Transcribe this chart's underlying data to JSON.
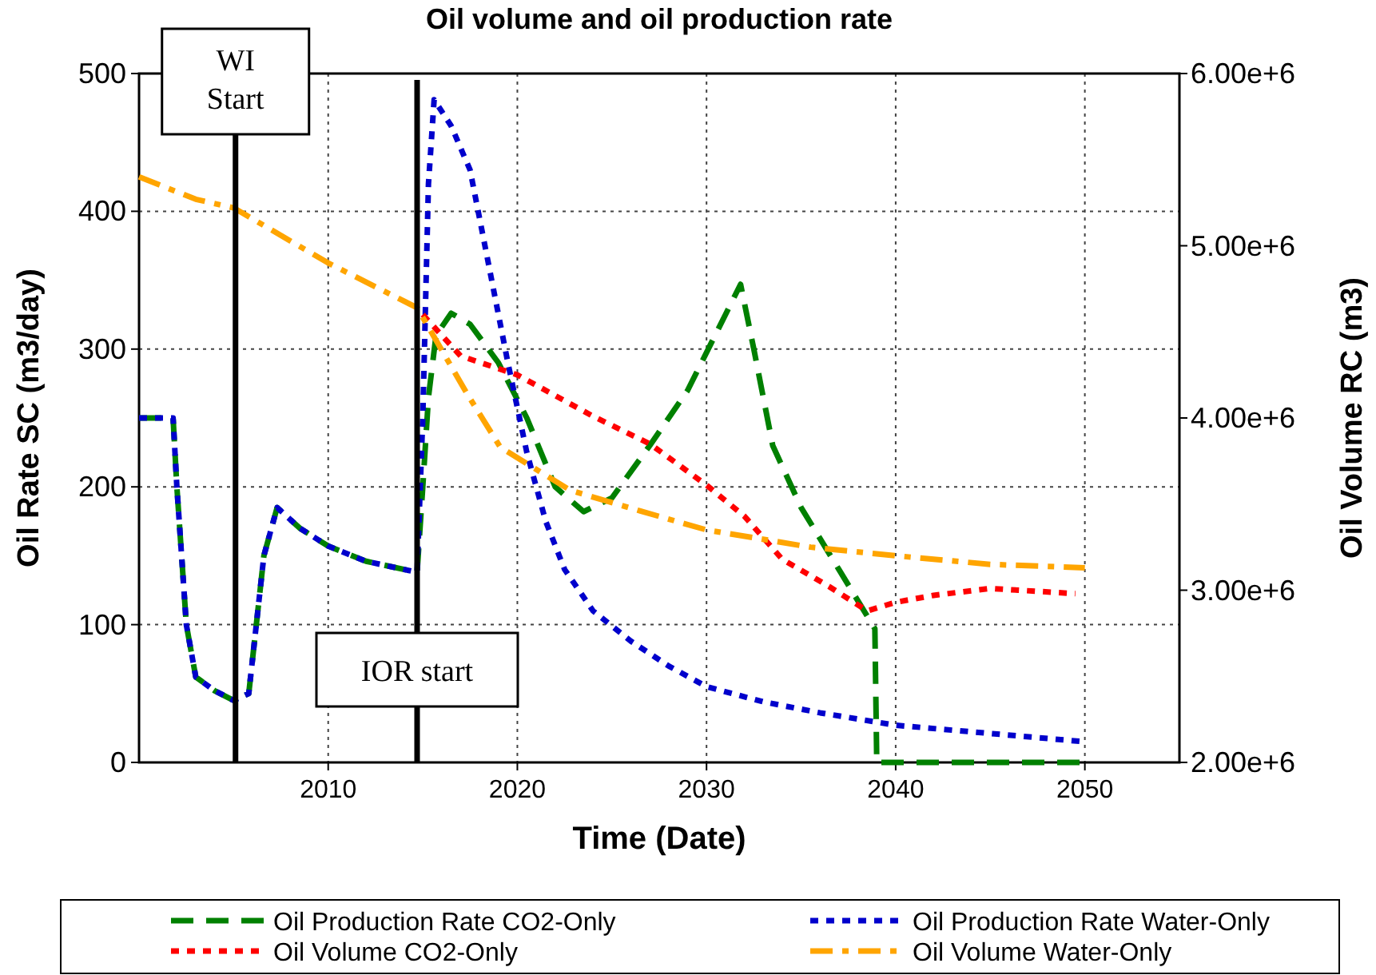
{
  "chart_data": {
    "type": "line",
    "title": "Oil volume and oil production rate",
    "xlabel": "Time (Date)",
    "ylabel": "Oil Rate SC (m3/day)",
    "y2label": "Oil Volume RC (m3)",
    "xlim": [
      2000,
      2055
    ],
    "xticks": [
      2010,
      2020,
      2030,
      2040,
      2050
    ],
    "ylim": [
      0,
      500
    ],
    "yticks": [
      0,
      100,
      200,
      300,
      400,
      500
    ],
    "y2lim": [
      2000000,
      6000000
    ],
    "y2ticks": [
      {
        "value": 2000000,
        "label": "2.00e+6"
      },
      {
        "value": 3000000,
        "label": "3.00e+6"
      },
      {
        "value": 4000000,
        "label": "4.00e+6"
      },
      {
        "value": 5000000,
        "label": "5.00e+6"
      },
      {
        "value": 6000000,
        "label": "6.00e+6"
      }
    ],
    "grid": true,
    "legend": "bottom",
    "marker": "none",
    "ref_lines": [
      {
        "axis": "x",
        "value": 2005.1,
        "label": "WI Start",
        "color": "#000000",
        "line_style": "solid"
      },
      {
        "axis": "x",
        "value": 2014.7,
        "label": "IOR start",
        "color": "#000000",
        "line_style": "solid"
      }
    ],
    "series": [
      {
        "name": "Oil Production Rate CO2-Only",
        "color": "#008000",
        "line_style": "dashed",
        "x": [
          2000,
          2001.8,
          2002,
          2002.5,
          2003,
          2004,
          2005,
          2005.8,
          2006.2,
          2006.6,
          2007.3,
          2008.5,
          2010,
          2012,
          2014.7,
          2015,
          2015.3,
          2015.7,
          2016.5,
          2017.5,
          2019,
          2020.5,
          2022,
          2023.5,
          2025,
          2027,
          2029,
          2031,
          2031.8,
          2032.5,
          2033.5,
          2035,
          2037,
          2038.9,
          2039,
          2050
        ],
        "values": [
          250,
          250,
          200,
          100,
          62,
          52,
          45,
          50,
          100,
          150,
          185,
          170,
          157,
          146,
          138,
          200,
          265,
          310,
          326,
          318,
          290,
          250,
          200,
          182,
          192,
          230,
          270,
          325,
          347,
          300,
          230,
          185,
          140,
          97,
          0,
          0
        ]
      },
      {
        "name": "Oil Production Rate Water-Only",
        "color": "#0000cc",
        "line_style": "dotted",
        "x": [
          2000,
          2001.8,
          2002,
          2002.5,
          2003,
          2004,
          2005,
          2005.8,
          2006.2,
          2006.6,
          2007.3,
          2008.5,
          2010,
          2012,
          2014.7,
          2015,
          2015.3,
          2015.6,
          2016.5,
          2017.5,
          2018.5,
          2019.5,
          2020.5,
          2021.5,
          2022.5,
          2024,
          2026,
          2028,
          2030,
          2033,
          2036,
          2040,
          2045,
          2050
        ],
        "values": [
          250,
          250,
          200,
          100,
          62,
          52,
          45,
          50,
          100,
          150,
          185,
          170,
          157,
          146,
          138,
          250,
          420,
          481,
          462,
          430,
          360,
          290,
          225,
          175,
          140,
          110,
          88,
          70,
          55,
          44,
          36,
          27,
          21,
          15
        ]
      },
      {
        "name": "Oil Volume CO2-Only",
        "color": "#ff0000",
        "line_style": "dotted",
        "axis": "y2",
        "x": [
          2015,
          2017,
          2020,
          2024,
          2027,
          2030,
          2032,
          2034,
          2036.5,
          2038.5,
          2040,
          2042,
          2045,
          2049.5
        ],
        "values": [
          4600000,
          4360000,
          4250000,
          4010000,
          3850000,
          3610000,
          3430000,
          3180000,
          3020000,
          2880000,
          2930000,
          2970000,
          3010000,
          2980000
        ]
      },
      {
        "name": "Oil Volume Water-Only",
        "color": "#ffa500",
        "line_style": "dashdot",
        "axis": "y2",
        "x": [
          2000,
          2003,
          2005,
          2010,
          2014.7,
          2017.4,
          2019.1,
          2022.8,
          2026.5,
          2030,
          2035.5,
          2040,
          2045,
          2050
        ],
        "values": [
          5400000,
          5270000,
          5220000,
          4900000,
          4640000,
          4130000,
          3830000,
          3580000,
          3460000,
          3350000,
          3250000,
          3200000,
          3150000,
          3130000
        ]
      }
    ]
  }
}
